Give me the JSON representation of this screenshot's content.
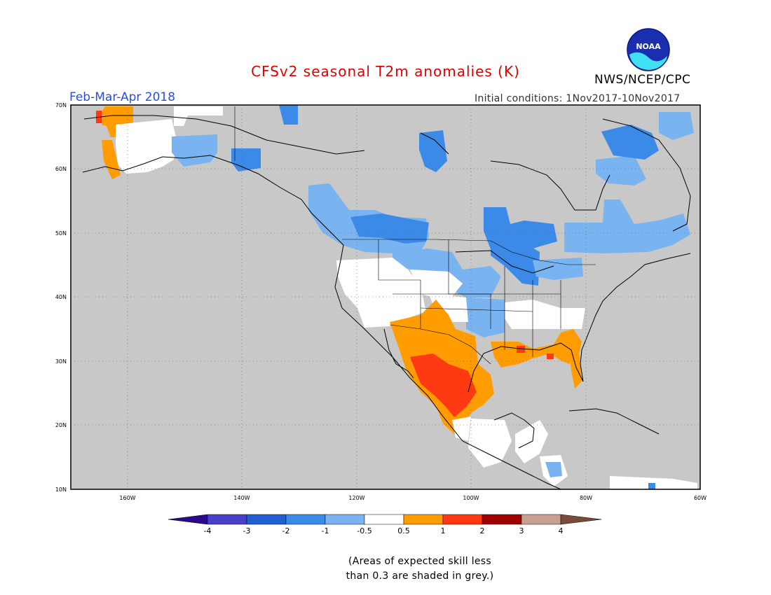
{
  "title": "CFSv2 seasonal T2m anomalies (K)",
  "period": "Feb-Mar-Apr 2018",
  "initial_conditions": "Initial conditions: 1Nov2017-10Nov2017",
  "agency": "NWS/NCEP/CPC",
  "logo_text": "NOAA",
  "colors": {
    "title": "#e00000",
    "period": "#2a4de0",
    "land_grey": "#c8c8c8",
    "ocean_grey": "#c8c8c8"
  },
  "axes": {
    "lat_labels": [
      "70N",
      "60N",
      "50N",
      "40N",
      "30N",
      "20N",
      "10N"
    ],
    "lon_labels": [
      "160W",
      "140W",
      "120W",
      "100W",
      "80W",
      "60W"
    ]
  },
  "colorbar": {
    "labels": [
      "-4",
      "-3",
      "-2",
      "-1",
      "-0.5",
      "0.5",
      "1",
      "2",
      "3",
      "4"
    ],
    "colors": [
      "#2a0a8c",
      "#4b3ec8",
      "#1f5fd0",
      "#3c8ae8",
      "#7ab4f0",
      "#ffffff",
      "#ff9c00",
      "#ff3a12",
      "#a00000",
      "#c8a090",
      "#7a4a3a"
    ]
  },
  "note": {
    "line1": "(Areas of expected skill less",
    "line2": "than 0.3 are shaded in grey.)"
  }
}
